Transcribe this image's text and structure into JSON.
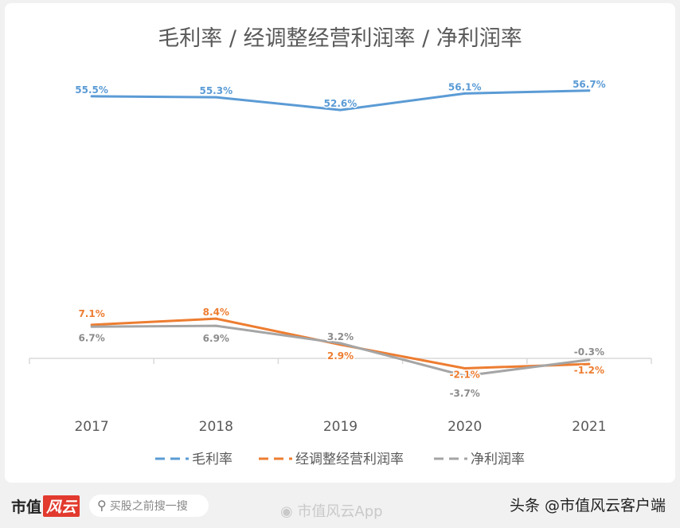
{
  "chart_data": {
    "type": "line",
    "title": "毛利率 / 经调整经营利润率 / 净利润率",
    "categories": [
      "2017",
      "2018",
      "2019",
      "2020",
      "2021"
    ],
    "unit": "%",
    "series": [
      {
        "name": "毛利率",
        "color": "#5b9bd5",
        "values": [
          55.5,
          55.3,
          52.6,
          56.1,
          56.7
        ],
        "labels": [
          "55.5%",
          "55.3%",
          "52.6%",
          "56.1%",
          "56.7%"
        ]
      },
      {
        "name": "经调整经营利润率",
        "color": "#ed7d31",
        "values": [
          7.1,
          8.4,
          2.9,
          -2.1,
          -1.2
        ],
        "labels": [
          "7.1%",
          "8.4%",
          "2.9%",
          "-2.1%",
          "-1.2%"
        ]
      },
      {
        "name": "净利润率",
        "color": "#a5a5a5",
        "values": [
          6.7,
          6.9,
          3.2,
          -3.7,
          -0.3
        ],
        "labels": [
          "6.7%",
          "6.9%",
          "3.2%",
          "-3.7%",
          "-0.3%"
        ]
      }
    ],
    "legend_position": "bottom",
    "grid": false
  },
  "footer": {
    "brand": "市值",
    "brand_logo": "风云",
    "search_placeholder": "买股之前搜一搜",
    "weibo": "市值风云App",
    "toutiao": "头条 @市值风云客户端"
  }
}
